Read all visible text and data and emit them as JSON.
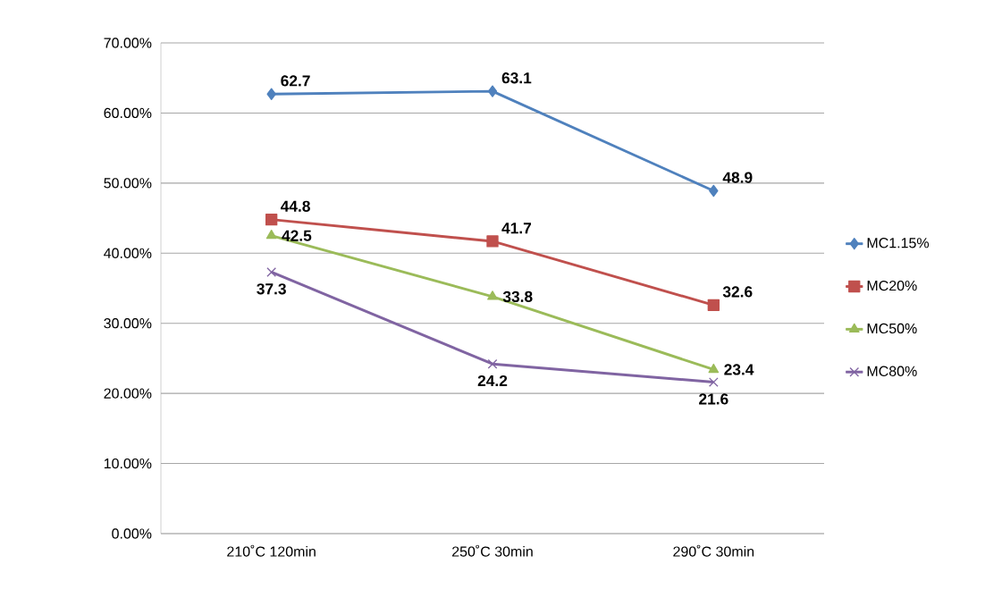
{
  "chart_data": {
    "type": "line",
    "categories": [
      "210˚C 120min",
      "250˚C 30min",
      "290˚C 30min"
    ],
    "series": [
      {
        "name": "MC1.15%",
        "color": "#4f81bd",
        "marker": "diamond",
        "values": [
          62.7,
          63.1,
          48.9
        ]
      },
      {
        "name": "MC20%",
        "color": "#c0504d",
        "marker": "square",
        "values": [
          44.8,
          41.7,
          32.6
        ]
      },
      {
        "name": "MC50%",
        "color": "#9bbb59",
        "marker": "triangle",
        "values": [
          42.5,
          33.8,
          23.4
        ]
      },
      {
        "name": "MC80%",
        "color": "#8064a2",
        "marker": "cross",
        "values": [
          37.3,
          24.2,
          21.6
        ]
      }
    ],
    "ylim": [
      0,
      70
    ],
    "yticks": [
      {
        "value": 0,
        "label": "0.00%"
      },
      {
        "value": 10,
        "label": "10.00%"
      },
      {
        "value": 20,
        "label": "20.00%"
      },
      {
        "value": 30,
        "label": "30.00%"
      },
      {
        "value": 40,
        "label": "40.00%"
      },
      {
        "value": 50,
        "label": "50.00%"
      },
      {
        "value": 60,
        "label": "60.00%"
      },
      {
        "value": 70,
        "label": "70.00%"
      }
    ],
    "grid": "y",
    "legend": "right",
    "data_labels": true,
    "line_style": "solid"
  }
}
